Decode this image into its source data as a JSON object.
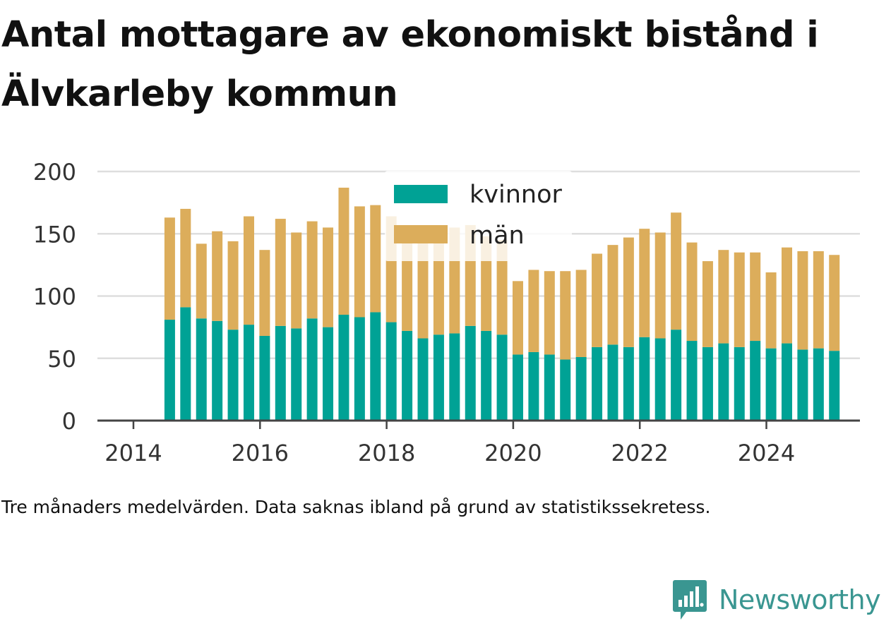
{
  "title": "Antal mottagare av ekonomiskt bistånd i Älvkarleby kommun",
  "note": "Tre månaders medelvärden. Data saknas ibland på grund av statistikssekretess.",
  "brand": "Newsworthy",
  "colors": {
    "kvinnor": "#00a295",
    "man": "#dcad5b",
    "grid": "#dedede",
    "axis": "#444444",
    "brand": "#3a9691"
  },
  "chart_data": {
    "type": "bar",
    "stacked": true,
    "x_ticks": [
      "2014",
      "2016",
      "2018",
      "2020",
      "2022",
      "2024"
    ],
    "y_ticks": [
      "0",
      "50",
      "100",
      "150",
      "200"
    ],
    "ylim": [
      0,
      200
    ],
    "xlim": [
      "2014-01",
      "2026-01"
    ],
    "legend_position": "top-center",
    "categories": [
      "2014-04",
      "2014-07",
      "2014-10",
      "2015-01",
      "2015-04",
      "2015-07",
      "2015-10",
      "2016-01",
      "2016-04",
      "2016-07",
      "2016-10",
      "2017-01",
      "2017-04",
      "2017-07",
      "2017-10",
      "2018-01",
      "2018-04",
      "2018-07",
      "2018-10",
      "2019-01",
      "2019-04",
      "2019-07",
      "2019-10",
      "2020-01",
      "2020-04",
      "2020-07",
      "2020-10",
      "2021-01",
      "2021-04",
      "2021-07",
      "2021-10",
      "2022-01",
      "2022-04",
      "2022-07",
      "2022-10",
      "2023-01",
      "2023-04",
      "2023-07",
      "2023-10",
      "2024-01",
      "2024-04",
      "2024-07",
      "2024-10"
    ],
    "series": [
      {
        "name": "kvinnor",
        "values": [
          81,
          91,
          82,
          80,
          73,
          77,
          68,
          76,
          74,
          82,
          75,
          85,
          83,
          87,
          79,
          72,
          66,
          69,
          70,
          76,
          72,
          69,
          53,
          55,
          53,
          49,
          51,
          59,
          61,
          59,
          67,
          66,
          73,
          64,
          59,
          62,
          59,
          64,
          58,
          62,
          57,
          58,
          56
        ]
      },
      {
        "name": "män",
        "values": [
          82,
          79,
          60,
          72,
          71,
          87,
          69,
          86,
          77,
          78,
          80,
          102,
          89,
          86,
          85,
          84,
          89,
          87,
          85,
          81,
          76,
          76,
          59,
          66,
          67,
          71,
          70,
          75,
          80,
          88,
          87,
          85,
          94,
          79,
          69,
          75,
          76,
          71,
          61,
          77,
          79,
          78,
          77
        ]
      }
    ]
  }
}
